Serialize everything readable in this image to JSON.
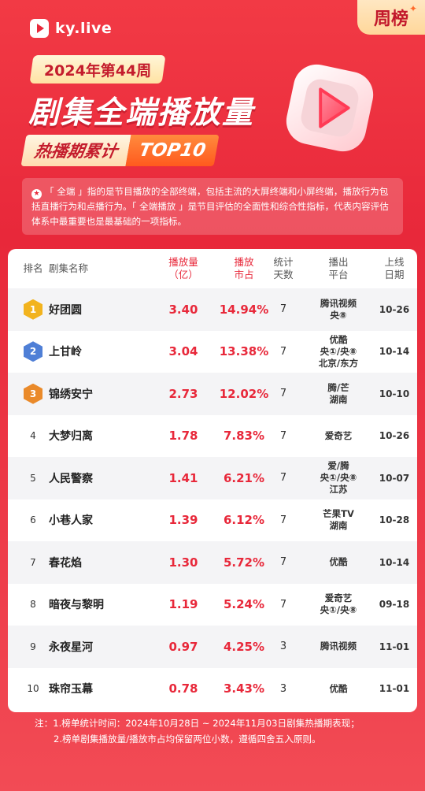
{
  "brand": {
    "logo_text": "ky.live",
    "tag": "周榜"
  },
  "header": {
    "week": "2024年第44周",
    "title": "剧集全端播放量",
    "subtitle_left": "热播期累计",
    "subtitle_right": "TOP10"
  },
  "intro": "「 全端 」指的是节目播放的全部终端，包括主流的大屏终端和小屏终端，播放行为包括直播行为和点播行为。「 全端播放 」是节目评估的全面性和综合性指标，代表内容评估体系中最重要也是最基础的一项指标。",
  "columns": {
    "rank": "排名",
    "name": "剧集名称",
    "plays_1": "播放量",
    "plays_2": "（亿）",
    "share_1": "播放",
    "share_2": "市占",
    "days_1": "统计",
    "days_2": "天数",
    "platform_1": "播出",
    "platform_2": "平台",
    "date_1": "上线",
    "date_2": "日期"
  },
  "colors": {
    "accent": "#e8283a",
    "gold": "#f2b31e",
    "silver": "#4f7fd6",
    "bronze": "#ea8a2a"
  },
  "chart_data": {
    "type": "table",
    "rows": [
      {
        "rank": "1",
        "name": "好团圆",
        "plays": "3.40",
        "share": "14.94%",
        "days": "7",
        "platform": [
          "腾讯视频",
          "央⑧"
        ],
        "date": "10-26"
      },
      {
        "rank": "2",
        "name": "上甘岭",
        "plays": "3.04",
        "share": "13.38%",
        "days": "7",
        "platform": [
          "优酷",
          "央①/央⑧",
          "北京/东方"
        ],
        "date": "10-14"
      },
      {
        "rank": "3",
        "name": "锦绣安宁",
        "plays": "2.73",
        "share": "12.02%",
        "days": "7",
        "platform": [
          "腾/芒",
          "湖南"
        ],
        "date": "10-10"
      },
      {
        "rank": "4",
        "name": "大梦归离",
        "plays": "1.78",
        "share": "7.83%",
        "days": "7",
        "platform": [
          "爱奇艺"
        ],
        "date": "10-26"
      },
      {
        "rank": "5",
        "name": "人民警察",
        "plays": "1.41",
        "share": "6.21%",
        "days": "7",
        "platform": [
          "爱/腾",
          "央①/央⑧",
          "江苏"
        ],
        "date": "10-07"
      },
      {
        "rank": "6",
        "name": "小巷人家",
        "plays": "1.39",
        "share": "6.12%",
        "days": "7",
        "platform": [
          "芒果TV",
          "湖南"
        ],
        "date": "10-28"
      },
      {
        "rank": "7",
        "name": "春花焰",
        "plays": "1.30",
        "share": "5.72%",
        "days": "7",
        "platform": [
          "优酷"
        ],
        "date": "10-14"
      },
      {
        "rank": "8",
        "name": "暗夜与黎明",
        "plays": "1.19",
        "share": "5.24%",
        "days": "7",
        "platform": [
          "爱奇艺",
          "央①/央⑧"
        ],
        "date": "09-18"
      },
      {
        "rank": "9",
        "name": "永夜星河",
        "plays": "0.97",
        "share": "4.25%",
        "days": "3",
        "platform": [
          "腾讯视频"
        ],
        "date": "11-01"
      },
      {
        "rank": "10",
        "name": "珠帘玉幕",
        "plays": "0.78",
        "share": "3.43%",
        "days": "3",
        "platform": [
          "优酷"
        ],
        "date": "11-01"
      }
    ]
  },
  "footnote": {
    "line1": "注：1.榜单统计时间：2024年10月28日 ~ 2024年11月03日剧集热播期表现；",
    "line2": "2.榜单剧集播放量/播放市占均保留两位小数，遵循四舍五入原则。"
  }
}
